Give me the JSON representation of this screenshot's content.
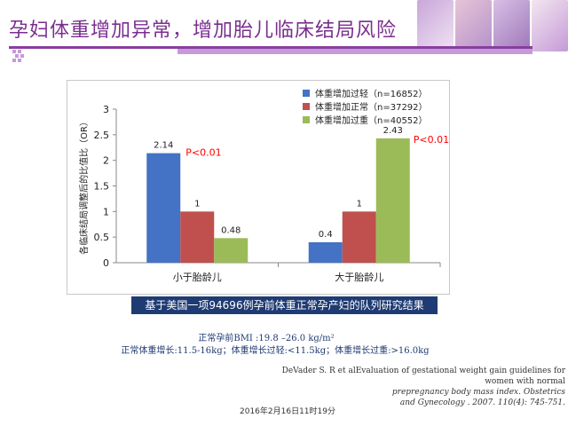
{
  "slide_title": "孕妇体重增加异常，增加胎儿临床结局风险",
  "caption": "基于美国一项94696例孕前体重正常孕产妇的队列研究结果",
  "notes": {
    "line1": "正常孕前BMI :19.8 –26.0 kg/m²",
    "line2": "正常体重增长:11.5-16kg；体重增长过轻:<11.5kg；体重增长过重:>16.0kg"
  },
  "reference": {
    "line1": "DeVader S. R et alEvaluation of gestational weight gain guidelines for women with normal",
    "line2": "prepregnancy body mass index. Obstetrics",
    "line3": "and Gynecology . 2007. 110(4): 745-751."
  },
  "date_stamp": "2016年2月16日11时19分",
  "colors": {
    "title": "#7a2f8e",
    "series": [
      "#4472c4",
      "#c0504d",
      "#9bbb59"
    ],
    "pvalue": "#ff0000",
    "caption_bg": "#1f3b73"
  },
  "chart_data": {
    "type": "bar",
    "ylabel": "各临床结局调整后的比值比（OR）",
    "ylim": [
      0,
      3
    ],
    "yticks": [
      "0",
      "0.5",
      "1",
      "1.5",
      "2",
      "2.5",
      "3"
    ],
    "categories": [
      "小于胎龄儿",
      "大于胎龄儿"
    ],
    "series": [
      {
        "name": "体重增加过轻（n=16852）",
        "values": [
          2.14,
          0.4
        ],
        "labels": [
          "2.14",
          "0.4"
        ]
      },
      {
        "name": "体重增加正常（n=37292）",
        "values": [
          1,
          1
        ],
        "labels": [
          "1",
          "1"
        ]
      },
      {
        "name": "体重增加过重（n=40552）",
        "values": [
          0.48,
          2.43
        ],
        "labels": [
          "0.48",
          "2.43"
        ]
      }
    ],
    "annotations": [
      "P<0.01",
      "P<0.01"
    ],
    "grid": false,
    "legend": "top-right"
  }
}
